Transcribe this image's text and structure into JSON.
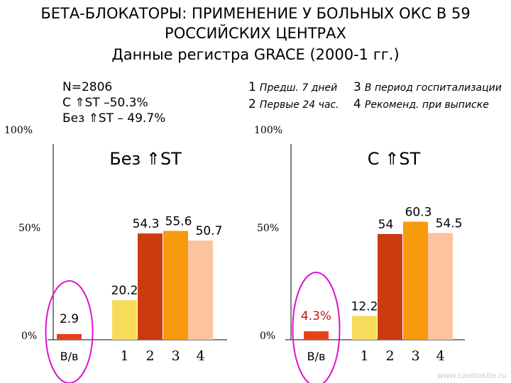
{
  "title": {
    "line1": "БЕТА-БЛОКАТОРЫ: ПРИМЕНЕНИЕ У БОЛЬНЫХ ОКС В 59",
    "line2": "РОССИЙСКИХ ЦЕНТРАХ",
    "line3": "Данные  регистра GRACE (2000-1 гг.)"
  },
  "stats": {
    "n": "N=2806",
    "with_st": "С ⇑ST –50.3%",
    "without_st": "Без ⇑ST – 49.7%"
  },
  "legend": [
    {
      "num": "1",
      "text": "Предш. 7 дней"
    },
    {
      "num": "2",
      "text": "Первые 24 час."
    },
    {
      "num": "3",
      "text": "В период госпитализации"
    },
    {
      "num": "4",
      "text": "Рекоменд. при выписке"
    }
  ],
  "watermark": "www.cardiosite.ru",
  "colors": {
    "iv": "#e8401a",
    "c1": "#f7dc5c",
    "c2": "#cc3a10",
    "c3": "#f79a0e",
    "c4": "#fbc49e",
    "circle": "#e010d0"
  },
  "chart_data": [
    {
      "type": "bar",
      "title": "Без ⇑ST",
      "ylim": [
        0,
        100
      ],
      "y_ticks": [
        "0%",
        "50%",
        "100%"
      ],
      "categories": [
        "В/в",
        "1",
        "2",
        "3",
        "4"
      ],
      "values": [
        2.9,
        20.2,
        54.3,
        55.6,
        50.7
      ],
      "labels": [
        "2.9",
        "20.2",
        "54.3",
        "55.6",
        "50.7"
      ]
    },
    {
      "type": "bar",
      "title": "С ⇑ST",
      "ylim": [
        0,
        100
      ],
      "y_ticks": [
        "0%",
        "50%",
        "100%"
      ],
      "categories": [
        "В/в",
        "1",
        "2",
        "3",
        "4"
      ],
      "values": [
        4.3,
        12.2,
        54,
        60.3,
        54.5
      ],
      "labels": [
        "4.3%",
        "12.2",
        "54",
        "60.3",
        "54.5"
      ]
    }
  ]
}
